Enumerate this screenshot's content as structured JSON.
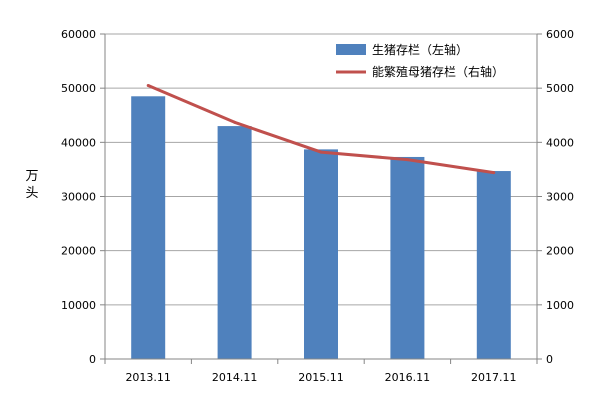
{
  "chart_data": {
    "type": "bar",
    "categories": [
      "2013.11",
      "2014.11",
      "2015.11",
      "2016.11",
      "2017.11"
    ],
    "series": [
      {
        "name": "生猪存栏（左轴）",
        "kind": "bar",
        "axis": "left",
        "color": "#4F81BD",
        "values": [
          48500,
          43000,
          38700,
          37300,
          34700
        ]
      },
      {
        "name": "能繁殖母猪存栏（右轴）",
        "kind": "line",
        "axis": "right",
        "color": "#C0504D",
        "values": [
          5050,
          4370,
          3820,
          3680,
          3440
        ]
      }
    ],
    "ylabel": "万头",
    "ylim_left": [
      0,
      60000
    ],
    "yticks_left": [
      "0",
      "10000",
      "20000",
      "30000",
      "40000",
      "50000",
      "60000"
    ],
    "ylim_right": [
      0,
      6000
    ],
    "yticks_right": [
      "0",
      "1000",
      "2000",
      "3000",
      "4000",
      "5000",
      "6000"
    ],
    "grid": "horizontal",
    "legend_position": "top-right"
  }
}
